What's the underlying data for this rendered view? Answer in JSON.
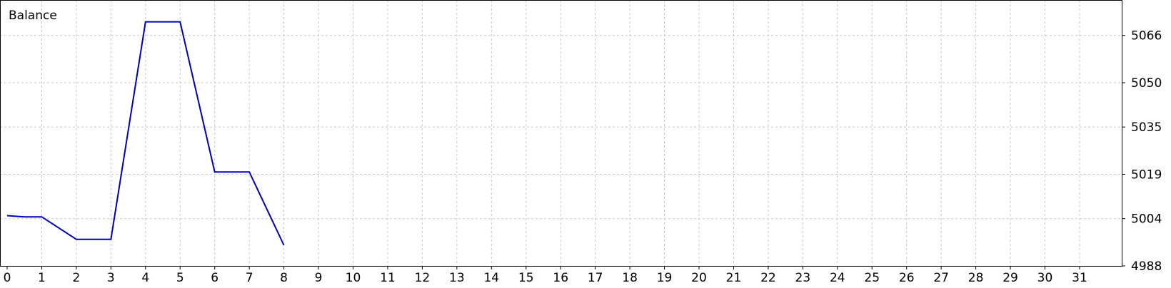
{
  "chart_data": {
    "type": "line",
    "title": "Balance",
    "x_ticks": [
      "0",
      "1",
      "2",
      "3",
      "4",
      "5",
      "6",
      "7",
      "8",
      "9",
      "10",
      "11",
      "12",
      "13",
      "14",
      "15",
      "16",
      "17",
      "18",
      "19",
      "20",
      "21",
      "22",
      "23",
      "24",
      "25",
      "26",
      "27",
      "28",
      "29",
      "30",
      "31"
    ],
    "y_ticks": [
      "5066",
      "5050",
      "5035",
      "5019",
      "5004",
      "4988"
    ],
    "ylim": [
      4988,
      5078
    ],
    "grid": true,
    "series": [
      {
        "color": "#0000b4",
        "x": [
          0,
          0.5,
          1,
          2,
          3,
          4,
          5,
          6,
          7,
          8
        ],
        "y": [
          5005.0,
          5004.6,
          5004.6,
          4997.0,
          4997.0,
          5070.6,
          5070.6,
          5019.8,
          5019.8,
          4995.0
        ]
      }
    ]
  }
}
